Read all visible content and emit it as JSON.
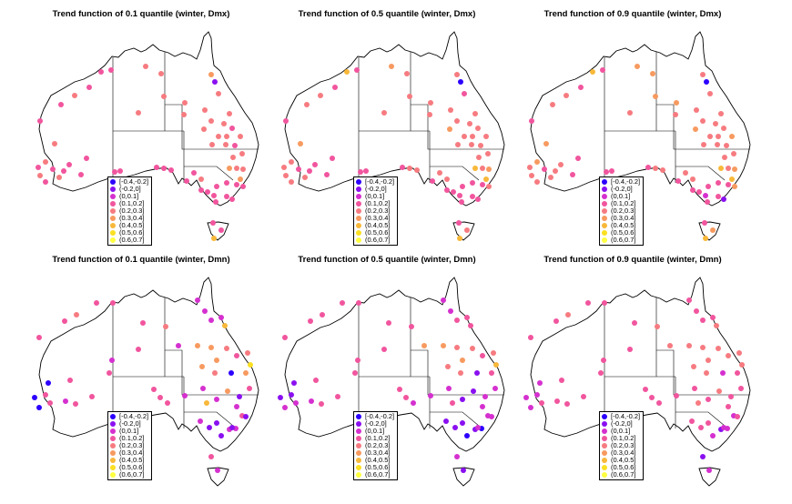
{
  "panels": [
    {
      "title": "Trend function of 0.1 quantile (winter, Dmx)",
      "variant": 0
    },
    {
      "title": "Trend function of 0.5 quantile (winter, Dmx)",
      "variant": 1
    },
    {
      "title": "Trend function of 0.9 quantile (winter, Dmx)",
      "variant": 2
    },
    {
      "title": "Trend function of 0.1 quantile (winter, Dmn)",
      "variant": 3
    },
    {
      "title": "Trend function of 0.5 quantile (winter, Dmn)",
      "variant": 4
    },
    {
      "title": "Trend function of 0.9 quantile (winter, Dmn)",
      "variant": 5
    }
  ],
  "legend": [
    {
      "label": "[-0.4,-0.2]",
      "color": "#2b00ff"
    },
    {
      "label": "(-0.2,0]",
      "color": "#8a10f0"
    },
    {
      "label": "(0,0.1]",
      "color": "#d530cf"
    },
    {
      "label": "(0.1,0.2]",
      "color": "#f1559e"
    },
    {
      "label": "(0.2,0.3]",
      "color": "#f67b80"
    },
    {
      "label": "(0.3,0.4]",
      "color": "#f79a60"
    },
    {
      "label": "(0.4,0.5]",
      "color": "#f8b83a"
    },
    {
      "label": "(0.5,0.6]",
      "color": "#fbe023"
    },
    {
      "label": "(0.6,0.7]",
      "color": "#ffff40"
    }
  ]
}
